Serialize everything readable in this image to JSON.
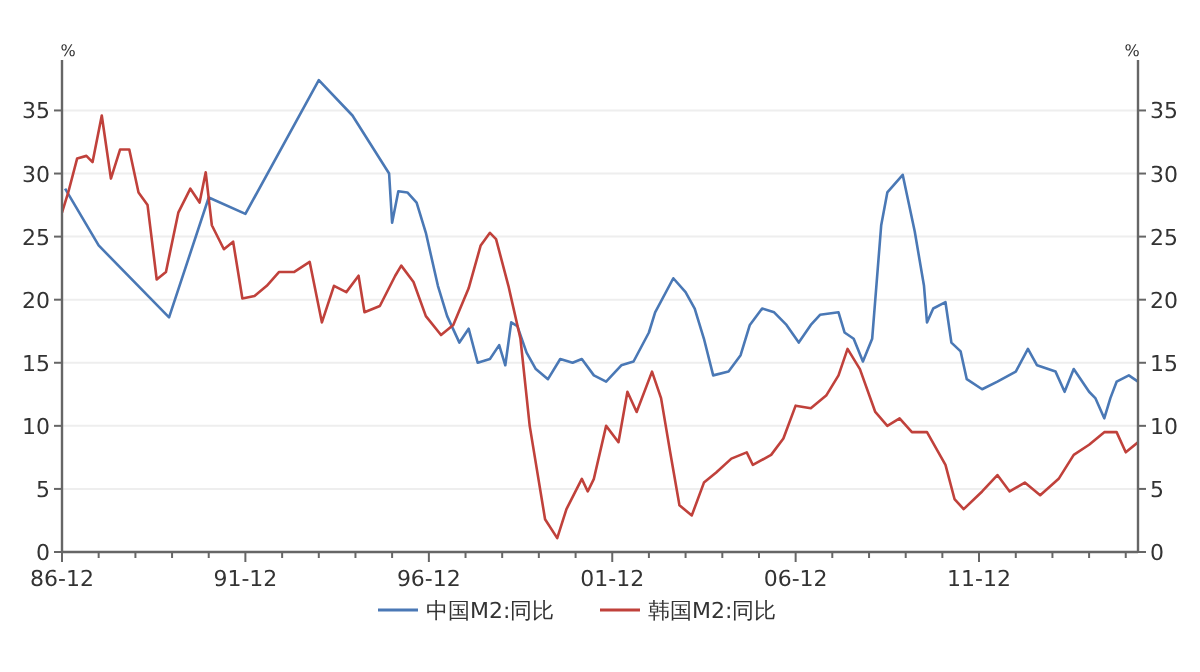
{
  "chart_data": {
    "type": "line",
    "ylabel": "%",
    "y2label": "%",
    "xlim": [
      "1986-12",
      "2016-04"
    ],
    "xticks": [
      {
        "value": "1986-12",
        "label": "86-12"
      },
      {
        "value": "1987-12",
        "label": null
      },
      {
        "value": "1988-12",
        "label": null
      },
      {
        "value": "1989-12",
        "label": null
      },
      {
        "value": "1990-12",
        "label": null
      },
      {
        "value": "1991-12",
        "label": "91-12"
      },
      {
        "value": "1992-12",
        "label": null
      },
      {
        "value": "1993-12",
        "label": null
      },
      {
        "value": "1994-12",
        "label": null
      },
      {
        "value": "1995-12",
        "label": null
      },
      {
        "value": "1996-12",
        "label": "96-12"
      },
      {
        "value": "1997-12",
        "label": null
      },
      {
        "value": "1998-12",
        "label": null
      },
      {
        "value": "1999-12",
        "label": null
      },
      {
        "value": "2000-12",
        "label": null
      },
      {
        "value": "2001-12",
        "label": "01-12"
      },
      {
        "value": "2002-12",
        "label": null
      },
      {
        "value": "2003-12",
        "label": null
      },
      {
        "value": "2004-12",
        "label": null
      },
      {
        "value": "2005-12",
        "label": null
      },
      {
        "value": "2006-12",
        "label": "06-12"
      },
      {
        "value": "2007-12",
        "label": null
      },
      {
        "value": "2008-12",
        "label": null
      },
      {
        "value": "2009-12",
        "label": null
      },
      {
        "value": "2010-12",
        "label": null
      },
      {
        "value": "2011-12",
        "label": "11-12"
      },
      {
        "value": "2012-12",
        "label": null
      },
      {
        "value": "2013-12",
        "label": null
      },
      {
        "value": "2014-12",
        "label": null
      },
      {
        "value": "2015-12",
        "label": null
      }
    ],
    "ylim": [
      0,
      39
    ],
    "yticks": [
      0,
      5,
      10,
      15,
      20,
      25,
      30,
      35
    ],
    "y2lim": [
      0,
      39
    ],
    "y2ticks": [
      0,
      5,
      10,
      15,
      20,
      25,
      30,
      35
    ],
    "grid": "y",
    "legend": "bottom",
    "marker": "none",
    "line_style": "solid",
    "series": [
      {
        "name": "中国M2:同比",
        "color": "#4a78b5",
        "x": [
          "1987-01",
          "1987-12",
          "1989-11",
          "1990-12",
          "1991-12",
          "1993-12",
          "1994-11",
          "1995-11",
          "1995-12",
          "1996-02",
          "1996-05",
          "1996-08",
          "1996-11",
          "1997-03",
          "1997-06",
          "1997-10",
          "1998-01",
          "1998-04",
          "1998-08",
          "1998-11",
          "1999-01",
          "1999-03",
          "1999-05",
          "1999-08",
          "1999-11",
          "2000-03",
          "2000-07",
          "2000-11",
          "2001-02",
          "2001-06",
          "2001-10",
          "2002-03",
          "2002-07",
          "2002-12",
          "2003-02",
          "2003-08",
          "2003-12",
          "2004-03",
          "2004-06",
          "2004-09",
          "2005-02",
          "2005-06",
          "2005-09",
          "2006-01",
          "2006-05",
          "2006-09",
          "2007-01",
          "2007-05",
          "2007-08",
          "2008-02",
          "2008-04",
          "2008-07",
          "2008-10",
          "2009-01",
          "2009-04",
          "2009-06",
          "2009-11",
          "2010-03",
          "2010-06",
          "2010-07",
          "2010-09",
          "2011-01",
          "2011-03",
          "2011-06",
          "2011-08",
          "2012-01",
          "2012-06",
          "2012-12",
          "2013-04",
          "2013-07",
          "2014-01",
          "2014-04",
          "2014-07",
          "2014-12",
          "2015-02",
          "2015-05",
          "2015-07",
          "2015-09",
          "2016-01",
          "2016-04"
        ],
        "values": [
          28.8,
          24.3,
          18.6,
          28.1,
          26.8,
          37.4,
          34.6,
          30.0,
          26.1,
          28.6,
          28.5,
          27.7,
          25.3,
          21.1,
          18.7,
          16.6,
          17.7,
          15.0,
          15.3,
          16.4,
          14.8,
          18.2,
          17.9,
          15.8,
          14.5,
          13.7,
          15.3,
          15.0,
          15.3,
          14.0,
          13.5,
          14.8,
          15.1,
          17.4,
          19.0,
          21.7,
          20.6,
          19.3,
          16.9,
          14.0,
          14.3,
          15.6,
          18.0,
          19.3,
          19.0,
          18.0,
          16.6,
          18.0,
          18.8,
          19.0,
          17.4,
          16.9,
          15.1,
          16.9,
          25.9,
          28.5,
          29.9,
          25.4,
          21.1,
          18.2,
          19.3,
          19.8,
          16.6,
          15.9,
          13.7,
          12.9,
          13.5,
          14.3,
          16.1,
          14.8,
          14.3,
          12.7,
          14.5,
          12.7,
          12.2,
          10.6,
          12.2,
          13.5,
          14.0,
          13.5
        ]
      },
      {
        "name": "韩国M2:同比",
        "color": "#c0413b",
        "x": [
          "1986-12",
          "1987-02",
          "1987-05",
          "1987-08",
          "1987-10",
          "1988-01",
          "1988-04",
          "1988-07",
          "1988-10",
          "1989-01",
          "1989-04",
          "1989-07",
          "1989-10",
          "1990-02",
          "1990-06",
          "1990-09",
          "1990-11",
          "1991-01",
          "1991-05",
          "1991-08",
          "1991-11",
          "1992-03",
          "1992-07",
          "1992-11",
          "1993-04",
          "1993-09",
          "1994-01",
          "1994-05",
          "1994-09",
          "1995-01",
          "1995-03",
          "1995-08",
          "1996-01",
          "1996-03",
          "1996-07",
          "1996-11",
          "1997-04",
          "1997-08",
          "1998-01",
          "1998-05",
          "1998-08",
          "1998-10",
          "1999-02",
          "1999-06",
          "1999-09",
          "2000-02",
          "2000-06",
          "2000-09",
          "2001-02",
          "2001-04",
          "2001-06",
          "2001-10",
          "2002-02",
          "2002-05",
          "2002-08",
          "2003-01",
          "2003-04",
          "2003-07",
          "2003-10",
          "2004-02",
          "2004-06",
          "2004-10",
          "2005-03",
          "2005-08",
          "2005-10",
          "2006-04",
          "2006-08",
          "2006-12",
          "2007-05",
          "2007-10",
          "2008-02",
          "2008-05",
          "2008-09",
          "2009-02",
          "2009-06",
          "2009-10",
          "2010-02",
          "2010-07",
          "2011-01",
          "2011-04",
          "2011-07",
          "2012-01",
          "2012-06",
          "2012-10",
          "2013-03",
          "2013-08",
          "2014-02",
          "2014-07",
          "2014-12",
          "2015-05",
          "2015-09",
          "2015-12",
          "2016-04"
        ],
        "values": [
          26.9,
          28.5,
          31.2,
          31.4,
          30.9,
          34.6,
          29.6,
          31.9,
          31.9,
          28.5,
          27.5,
          21.6,
          22.2,
          26.9,
          28.8,
          27.7,
          30.1,
          25.9,
          24.0,
          24.6,
          20.1,
          20.3,
          21.1,
          22.2,
          22.2,
          23.0,
          18.2,
          21.1,
          20.6,
          21.9,
          19.0,
          19.5,
          21.9,
          22.7,
          21.4,
          18.7,
          17.2,
          18.0,
          20.9,
          24.3,
          25.3,
          24.8,
          21.1,
          16.9,
          10.0,
          2.6,
          1.1,
          3.4,
          5.8,
          4.8,
          5.8,
          10.0,
          8.7,
          12.7,
          11.1,
          14.3,
          12.2,
          7.9,
          3.7,
          2.9,
          5.5,
          6.3,
          7.4,
          7.9,
          6.9,
          7.7,
          9.0,
          11.6,
          11.4,
          12.4,
          14.0,
          16.1,
          14.5,
          11.1,
          10.0,
          10.6,
          9.5,
          9.5,
          6.9,
          4.2,
          3.4,
          4.8,
          6.1,
          4.8,
          5.5,
          4.5,
          5.8,
          7.7,
          8.5,
          9.5,
          9.5,
          7.9,
          8.7
        ]
      }
    ]
  }
}
